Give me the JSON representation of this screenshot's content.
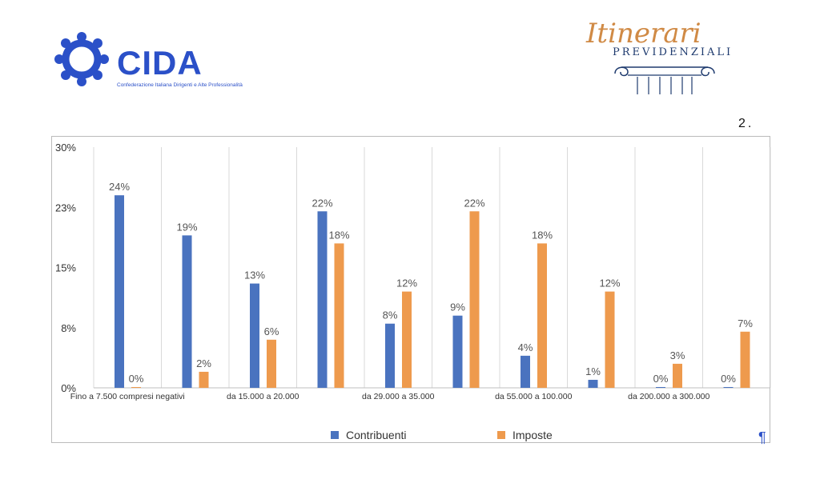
{
  "header": {
    "left_logo": {
      "name": "CIDA",
      "tagline": "Confederazione Italiana Dirigenti e Alte Professionalità"
    },
    "right_logo": {
      "script": "Itinerari",
      "subtitle": "PREVIDENZIALI"
    },
    "page_number": "2."
  },
  "colors": {
    "brand_blue": "#2b50c8",
    "contribuenti": "#4a73bf",
    "imposte": "#ee9a4d",
    "logo_orange": "#d08a45"
  },
  "chart_data": {
    "type": "bar",
    "categories": [
      "Fino a 7.500 compresi negativi",
      "",
      "da 15.000 a 20.000",
      "",
      "da 29.000 a 35.000",
      "",
      "da 55.000 a 100.000",
      "",
      "da 200.000 a 300.000",
      ""
    ],
    "series": [
      {
        "name": "Contribuenti",
        "values": [
          24,
          19,
          13,
          22,
          8,
          9,
          4,
          1,
          0,
          0
        ],
        "labels": [
          "24%",
          "19%",
          "13%",
          "22%",
          "8%",
          "9%",
          "4%",
          "1%",
          "0%",
          "0%"
        ],
        "color": "#4a73bf"
      },
      {
        "name": "Imposte",
        "values": [
          0,
          2,
          6,
          18,
          12,
          22,
          18,
          12,
          3,
          7
        ],
        "labels": [
          "0%",
          "2%",
          "6%",
          "18%",
          "12%",
          "22%",
          "18%",
          "12%",
          "3%",
          "7%"
        ],
        "color": "#ee9a4d"
      }
    ],
    "yticks": [
      "0%",
      "8%",
      "15%",
      "23%",
      "30%"
    ],
    "ylim": [
      0,
      30
    ],
    "grid": "vertical",
    "legend": "bottom"
  },
  "footer": {
    "pilcrow": "¶"
  }
}
